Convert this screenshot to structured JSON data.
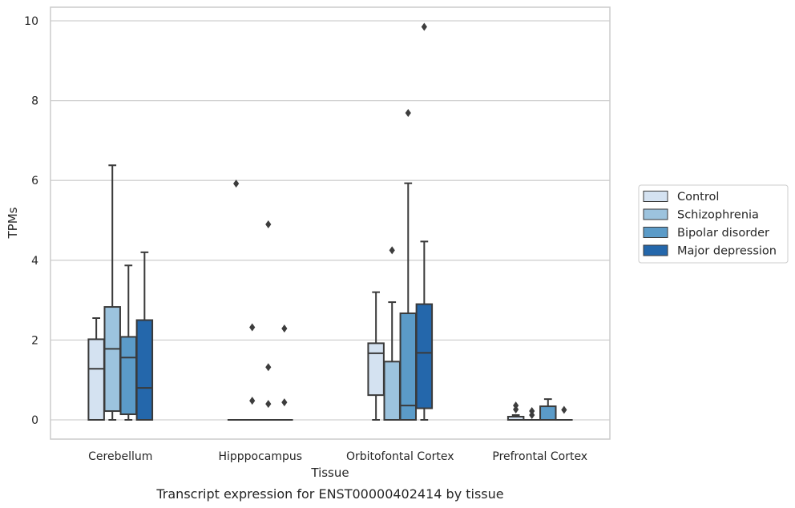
{
  "chart_data": {
    "type": "box",
    "title": "",
    "caption": "Transcript expression for ENST00000402414 by tissue",
    "xlabel": "Tissue",
    "ylabel": "TPMs",
    "ylim": [
      -0.45,
      10.35
    ],
    "yticks": [
      0,
      2,
      4,
      6,
      8,
      10
    ],
    "grid": "horizontal",
    "legend_position": "right",
    "categories": [
      "Cerebellum",
      "Hipppocampus",
      "Orbitofontal Cortex",
      "Prefrontal Cortex"
    ],
    "series": [
      {
        "name": "Control",
        "color": "#d4e2f1",
        "boxes": [
          {
            "min": 0,
            "q1": 0,
            "median": 1.28,
            "q3": 2.02,
            "max": 2.55,
            "outliers": []
          },
          {
            "min": 0,
            "q1": 0,
            "median": 0,
            "q3": 0,
            "max": 0,
            "outliers": [
              5.92
            ]
          },
          {
            "min": 0,
            "q1": 0.62,
            "median": 1.67,
            "q3": 1.92,
            "max": 3.2,
            "outliers": []
          },
          {
            "min": 0,
            "q1": 0,
            "median": 0,
            "q3": 0.08,
            "max": 0.12,
            "outliers": [
              0.26,
              0.36
            ]
          }
        ]
      },
      {
        "name": "Schizophrenia",
        "color": "#9cc3de",
        "boxes": [
          {
            "min": 0,
            "q1": 0.22,
            "median": 1.78,
            "q3": 2.83,
            "max": 6.38,
            "outliers": []
          },
          {
            "min": 0,
            "q1": 0,
            "median": 0,
            "q3": 0,
            "max": 0,
            "outliers": [
              2.32,
              0.48
            ]
          },
          {
            "min": 0,
            "q1": 0,
            "median": 0,
            "q3": 1.46,
            "max": 2.95,
            "outliers": [
              4.25
            ]
          },
          {
            "min": 0,
            "q1": 0,
            "median": 0,
            "q3": 0,
            "max": 0,
            "outliers": [
              0.12,
              0.22
            ]
          }
        ]
      },
      {
        "name": "Bipolar disorder",
        "color": "#5b9bc8",
        "boxes": [
          {
            "min": 0,
            "q1": 0.14,
            "median": 1.56,
            "q3": 2.08,
            "max": 3.87,
            "outliers": []
          },
          {
            "min": 0,
            "q1": 0,
            "median": 0,
            "q3": 0,
            "max": 0,
            "outliers": [
              4.9,
              1.32,
              0.4
            ]
          },
          {
            "min": 0,
            "q1": 0,
            "median": 0.36,
            "q3": 2.67,
            "max": 5.93,
            "outliers": [
              7.69
            ]
          },
          {
            "min": 0,
            "q1": 0,
            "median": 0,
            "q3": 0.34,
            "max": 0.52,
            "outliers": []
          }
        ]
      },
      {
        "name": "Major depression",
        "color": "#2467ab",
        "boxes": [
          {
            "min": 0,
            "q1": 0,
            "median": 0.8,
            "q3": 2.5,
            "max": 4.2,
            "outliers": []
          },
          {
            "min": 0,
            "q1": 0,
            "median": 0,
            "q3": 0,
            "max": 0,
            "outliers": [
              2.29,
              0.44
            ]
          },
          {
            "min": 0,
            "q1": 0.29,
            "median": 1.68,
            "q3": 2.9,
            "max": 4.47,
            "outliers": [
              9.85
            ]
          },
          {
            "min": 0,
            "q1": 0,
            "median": 0,
            "q3": 0,
            "max": 0,
            "outliers": [
              0.25
            ]
          }
        ]
      }
    ]
  }
}
